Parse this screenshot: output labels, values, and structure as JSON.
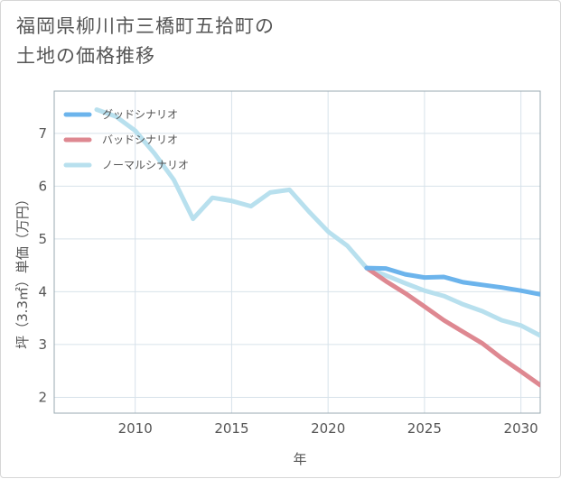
{
  "title": {
    "line1": "福岡県柳川市三橋町五拾町の",
    "line2": "土地の価格推移"
  },
  "chart_data": {
    "type": "line",
    "xlabel": "年",
    "ylabel": "坪（3.3㎡）単価（万円）",
    "xlim": [
      2005.8,
      2031
    ],
    "ylim": [
      1.7,
      7.8
    ],
    "xticks": [
      2010,
      2015,
      2020,
      2025,
      2030
    ],
    "yticks": [
      2,
      3,
      4,
      5,
      6,
      7
    ],
    "xtick_labels": [
      "2010",
      "2015",
      "2020",
      "2025",
      "2030"
    ],
    "ytick_labels": [
      "2",
      "3",
      "4",
      "5",
      "6",
      "7"
    ],
    "grid": true,
    "legend_position": "top-left",
    "series": [
      {
        "name": "グッドシナリオ",
        "color": "#6cb4ec",
        "x": [
          2022,
          2023,
          2024,
          2025,
          2026,
          2027,
          2028,
          2029,
          2030,
          2031
        ],
        "y": [
          4.45,
          4.44,
          4.33,
          4.27,
          4.28,
          4.18,
          4.13,
          4.08,
          4.02,
          3.95
        ]
      },
      {
        "name": "バッドシナリオ",
        "color": "#de8891",
        "x": [
          2022,
          2023,
          2024,
          2025,
          2026,
          2027,
          2028,
          2029,
          2030,
          2031
        ],
        "y": [
          4.45,
          4.2,
          3.97,
          3.72,
          3.46,
          3.24,
          3.02,
          2.74,
          2.49,
          2.23
        ]
      },
      {
        "name": "ノーマルシナリオ",
        "color": "#b8e0ee",
        "x": [
          2008,
          2009,
          2010,
          2011,
          2012,
          2013,
          2014,
          2015,
          2016,
          2017,
          2018,
          2019,
          2020,
          2021,
          2022,
          2023,
          2024,
          2025,
          2026,
          2027,
          2028,
          2029,
          2030,
          2031
        ],
        "y": [
          7.45,
          7.32,
          7.05,
          6.62,
          6.12,
          5.38,
          5.78,
          5.72,
          5.62,
          5.88,
          5.93,
          5.52,
          5.14,
          4.87,
          4.45,
          4.31,
          4.16,
          4.02,
          3.92,
          3.76,
          3.63,
          3.46,
          3.36,
          3.17
        ]
      }
    ]
  }
}
